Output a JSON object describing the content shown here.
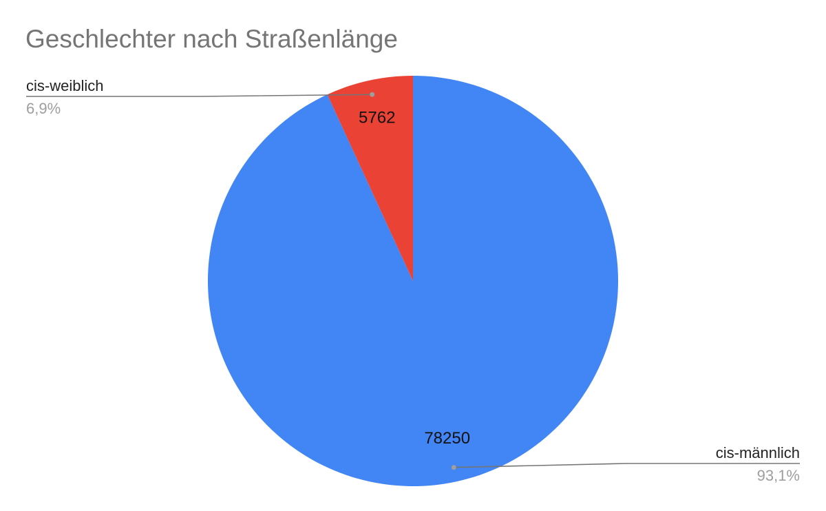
{
  "chart_data": {
    "type": "pie",
    "title": "Geschlechter nach Straßenlänge",
    "slices": [
      {
        "label": "cis-männlich",
        "value": 78250,
        "percent_label": "93,1%",
        "color": "#4285f4"
      },
      {
        "label": "cis-weiblich",
        "value": 5762,
        "percent_label": "6,9%",
        "color": "#ea4335"
      }
    ],
    "leader_line_color": "#757575"
  }
}
